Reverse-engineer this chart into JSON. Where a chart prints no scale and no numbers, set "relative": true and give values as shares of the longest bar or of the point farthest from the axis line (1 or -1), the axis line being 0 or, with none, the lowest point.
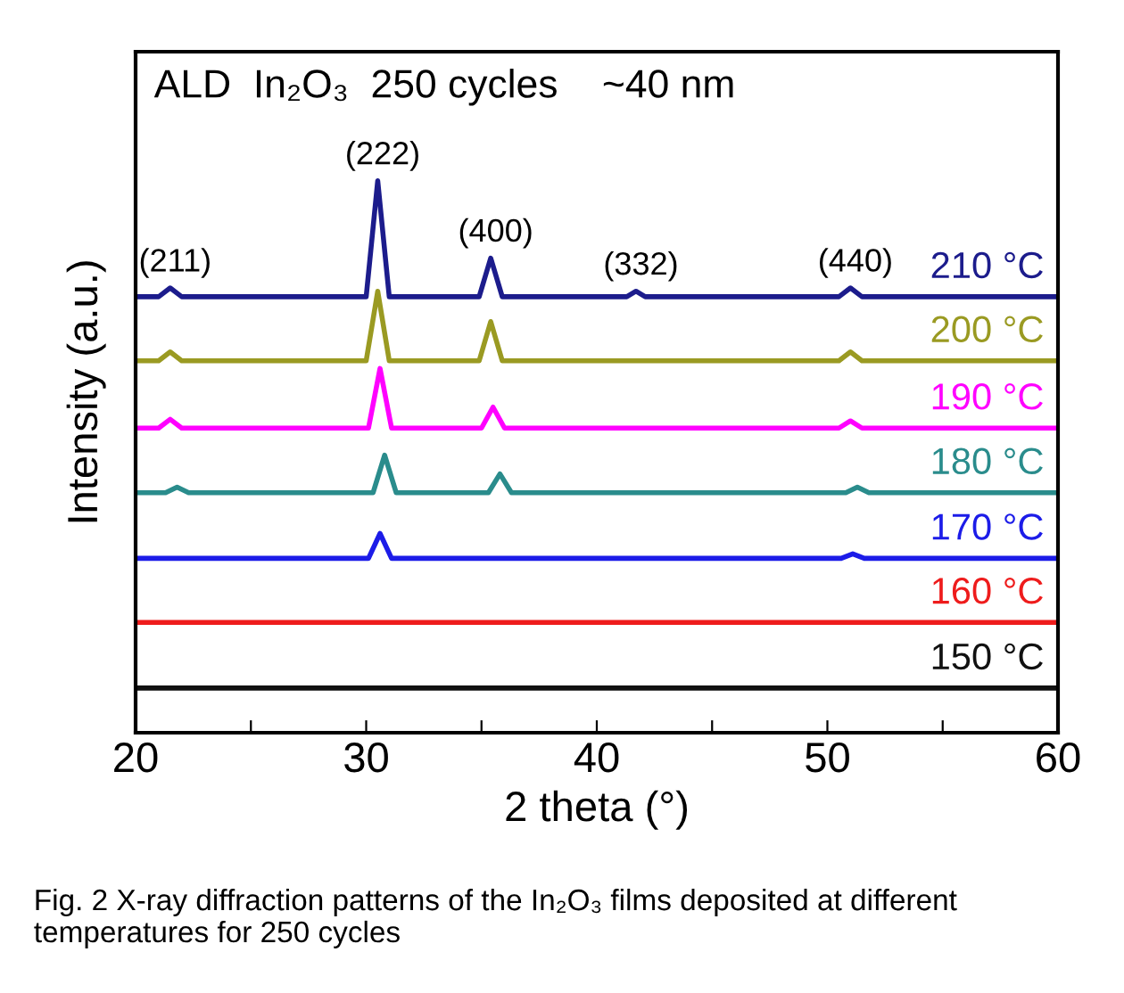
{
  "chart_data": {
    "type": "line",
    "relative": true,
    "title": "ALD  In₂O₃  250 cycles    ~40 nm",
    "xlabel": "2 theta (°)",
    "ylabel": "Intensity (a.u.)",
    "xlim": [
      20,
      60
    ],
    "xticks": [
      20,
      {
        "value": 25,
        "label": null
      },
      30,
      {
        "value": 35,
        "label": null
      },
      40,
      {
        "value": 45,
        "label": null
      },
      50,
      {
        "value": 55,
        "label": null
      },
      60
    ],
    "tick_labels": "x",
    "grid": false,
    "legend": false,
    "marker": "none",
    "line_style": "solid",
    "series": [
      {
        "name": "150 °C",
        "color": "#111111",
        "x": [
          20,
          30,
          40,
          50,
          60
        ],
        "values": [
          0.081,
          0.081,
          0.081,
          0.081,
          0.081
        ]
      },
      {
        "name": "160 °C",
        "color": "#ee1c1c",
        "x": [
          20,
          30,
          40,
          50,
          60
        ],
        "values": [
          0.2,
          0.2,
          0.2,
          0.2,
          0.2
        ]
      },
      {
        "name": "170 °C",
        "color": "#1c1ce8",
        "x": [
          20,
          30.1,
          30.6,
          31.1,
          50.6,
          51.1,
          51.6,
          60
        ],
        "values": [
          0.316,
          0.316,
          0.361,
          0.316,
          0.316,
          0.324,
          0.316,
          0.316
        ]
      },
      {
        "name": "180 °C",
        "color": "#2a8c8c",
        "x": [
          20,
          21.3,
          21.8,
          22.3,
          30.3,
          30.8,
          31.3,
          35.3,
          35.8,
          36.3,
          50.8,
          51.3,
          51.8,
          60
        ],
        "values": [
          0.435,
          0.435,
          0.445,
          0.435,
          0.435,
          0.503,
          0.435,
          0.435,
          0.469,
          0.435,
          0.435,
          0.445,
          0.435,
          0.435
        ]
      },
      {
        "name": "190 °C",
        "color": "#ff00ff",
        "x": [
          20,
          21.0,
          21.5,
          22.0,
          30.1,
          30.6,
          31.1,
          35.0,
          35.5,
          36.0,
          50.5,
          51.0,
          51.5,
          60
        ],
        "values": [
          0.552,
          0.552,
          0.568,
          0.552,
          0.552,
          0.66,
          0.552,
          0.552,
          0.59,
          0.552,
          0.552,
          0.565,
          0.552,
          0.552
        ]
      },
      {
        "name": "200 °C",
        "color": "#9a9a22",
        "x": [
          20,
          21.0,
          21.5,
          22.0,
          30.0,
          30.5,
          31.0,
          34.9,
          35.4,
          35.9,
          50.5,
          51.0,
          51.5,
          60
        ],
        "values": [
          0.674,
          0.674,
          0.69,
          0.674,
          0.674,
          0.8,
          0.674,
          0.674,
          0.745,
          0.674,
          0.674,
          0.69,
          0.674,
          0.674
        ]
      },
      {
        "name": "210 °C",
        "color": "#1c1c8c",
        "x": [
          20,
          21.0,
          21.5,
          22.0,
          30.0,
          30.5,
          31.0,
          34.9,
          35.4,
          35.9,
          41.3,
          41.7,
          42.1,
          50.5,
          51.0,
          51.5,
          60
        ],
        "values": [
          0.79,
          0.79,
          0.806,
          0.79,
          0.79,
          1.0,
          0.79,
          0.79,
          0.86,
          0.79,
          0.79,
          0.8,
          0.79,
          0.79,
          0.806,
          0.79,
          0.79
        ]
      }
    ],
    "annotations": [
      {
        "text": "(211)",
        "x": 21.5,
        "y": 0.806
      },
      {
        "text": "(222)",
        "x": 30.5,
        "y": 1.0
      },
      {
        "text": "(400)",
        "x": 35.4,
        "y": 0.86
      },
      {
        "text": "(332)",
        "x": 41.7,
        "y": 0.8
      },
      {
        "text": "(440)",
        "x": 51.0,
        "y": 0.806
      },
      "Fig. 2 X-ray diffraction patterns of the In₂O₃ films deposited at different temperatures for 250 cycles"
    ]
  }
}
